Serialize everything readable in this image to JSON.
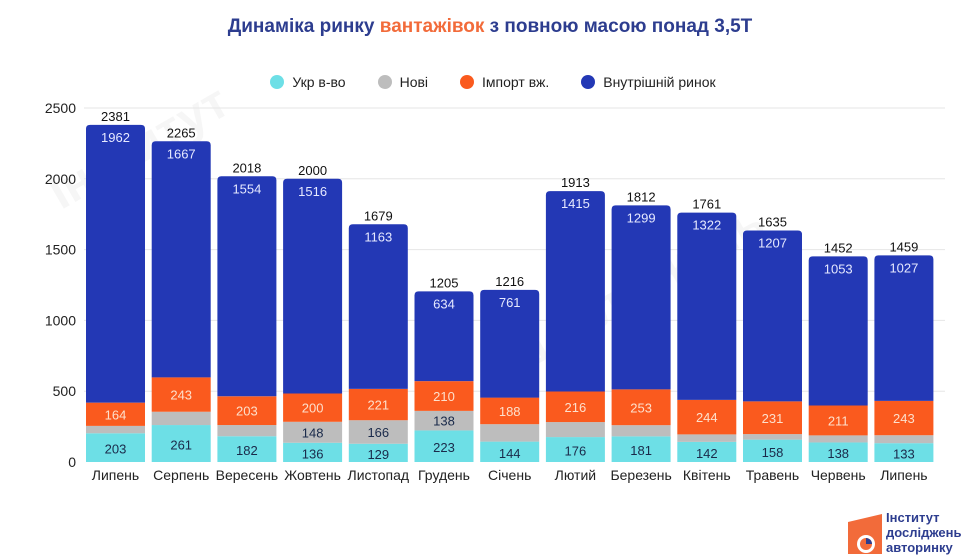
{
  "title": {
    "prefix": "Динаміка ринку ",
    "accent": "вантажівок",
    "suffix": " з повною масою понад 3,5Т"
  },
  "logo": {
    "line1": "Інститут",
    "line2": "досліджень",
    "line3": "авторинку"
  },
  "chart_data": {
    "type": "bar",
    "stacked": true,
    "title": "Динаміка ринку вантажівок з повною масою понад 3,5Т",
    "xlabel": "",
    "ylabel": "",
    "ylim": [
      0,
      2500
    ],
    "yticks": [
      0,
      500,
      1000,
      1500,
      2000,
      2500
    ],
    "grid": true,
    "legend_position": "top-center",
    "categories": [
      "Липень",
      "Серпень",
      "Вересень",
      "Жовтень",
      "Листопад",
      "Грудень",
      "Січень",
      "Лютий",
      "Березень",
      "Квітень",
      "Травень",
      "Червень",
      "Липень"
    ],
    "series": [
      {
        "name": "Укр в-во",
        "color": "#6ddfe6",
        "label_color": "#1a2a4a",
        "show_labels": true,
        "values": [
          203,
          261,
          182,
          136,
          129,
          223,
          144,
          176,
          181,
          142,
          158,
          138,
          133
        ]
      },
      {
        "name": "Нові",
        "color": "#bdbdbd",
        "label_color": "#1a2a4a",
        "show_labels": [
          false,
          false,
          false,
          true,
          true,
          true,
          false,
          false,
          false,
          false,
          false,
          false,
          false
        ],
        "values": [
          52,
          94,
          79,
          148,
          166,
          138,
          123,
          106,
          79,
          53,
          39,
          50,
          56
        ]
      },
      {
        "name": "Імпорт вж.",
        "color": "#fa5a1e",
        "label_color": "#fde0cc",
        "show_labels": true,
        "values": [
          164,
          243,
          203,
          200,
          221,
          210,
          188,
          216,
          253,
          244,
          231,
          211,
          243
        ]
      },
      {
        "name": "Внутрішній ринок",
        "color": "#2338b5",
        "label_color": "#e6e9ff",
        "show_labels": true,
        "values": [
          1962,
          1667,
          1554,
          1516,
          1163,
          634,
          761,
          1415,
          1299,
          1322,
          1207,
          1053,
          1027
        ]
      }
    ],
    "totals": [
      2381,
      2265,
      2018,
      2000,
      1679,
      1205,
      1216,
      1913,
      1812,
      1761,
      1635,
      1452,
      1459
    ]
  }
}
